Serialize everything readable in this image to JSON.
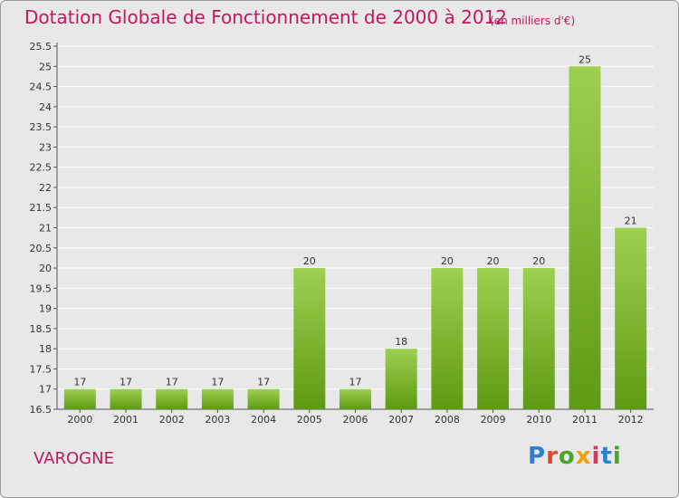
{
  "header": {
    "title": "Dotation Globale de Fonctionnement de 2000 à 2012",
    "unit_note": "(en milliers d'€)"
  },
  "footer": {
    "commune": "VAROGNE",
    "logo_text": "Proxiti"
  },
  "colors": {
    "accent": "#c0185f",
    "bar_light": "#9ed04f",
    "bar_dark": "#5f9a14",
    "background": "#e8e8e8"
  },
  "chart_data": {
    "type": "bar",
    "categories": [
      "2000",
      "2001",
      "2002",
      "2003",
      "2004",
      "2005",
      "2006",
      "2007",
      "2008",
      "2009",
      "2010",
      "2011",
      "2012"
    ],
    "values": [
      17,
      17,
      17,
      17,
      17,
      20,
      17,
      18,
      20,
      20,
      20,
      25,
      21
    ],
    "title": "Dotation Globale de Fonctionnement de 2000 à 2012",
    "subtitle": "(en milliers d'€)",
    "xlabel": "",
    "ylabel": "",
    "ylim": [
      16.5,
      25.5
    ],
    "yticks": [
      16.5,
      17,
      17.5,
      18,
      18.5,
      19,
      19.5,
      20,
      20.5,
      21,
      21.5,
      22,
      22.5,
      23,
      23.5,
      24,
      24.5,
      25,
      25.5
    ],
    "grid": true,
    "legend": "none"
  }
}
